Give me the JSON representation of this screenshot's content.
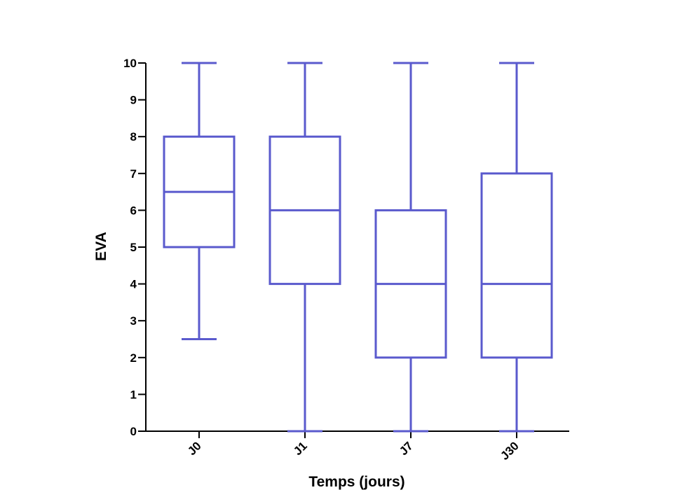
{
  "chart_data": {
    "type": "boxplot",
    "title": "",
    "xlabel": "Temps (jours)",
    "ylabel": "EVA",
    "ylim": [
      0,
      10
    ],
    "y_ticks": [
      0,
      1,
      2,
      3,
      4,
      5,
      6,
      7,
      8,
      9,
      10
    ],
    "categories": [
      "J0",
      "J1",
      "J7",
      "J30"
    ],
    "series": [
      {
        "category": "J0",
        "min": 2.5,
        "q1": 5,
        "median": 6.5,
        "q3": 8,
        "max": 10
      },
      {
        "category": "J1",
        "min": 0,
        "q1": 4,
        "median": 6,
        "q3": 8,
        "max": 10
      },
      {
        "category": "J7",
        "min": 0,
        "q1": 2,
        "median": 4,
        "q3": 6,
        "max": 10
      },
      {
        "category": "J30",
        "min": 0,
        "q1": 2,
        "median": 4,
        "q3": 7,
        "max": 10
      }
    ],
    "box_color": "#5a5acd",
    "grid": false
  }
}
